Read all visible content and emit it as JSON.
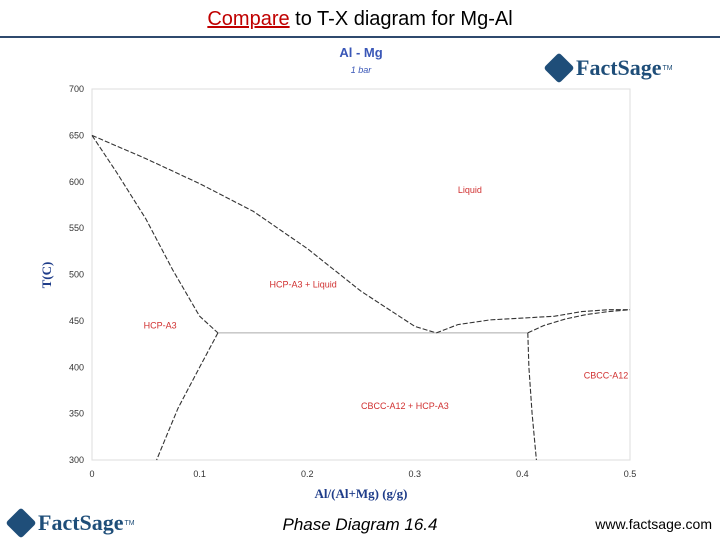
{
  "slide": {
    "title_keyword": "Compare",
    "title_rest": " to T-X diagram for Mg-Al",
    "footer_center": "Phase Diagram 16.4",
    "footer_right": "www.factsage.com",
    "logo_text": "FactSage",
    "logo_tm": "TM"
  },
  "colors": {
    "title_keyword": "#c00000",
    "chart_title": "#3a57b7",
    "curve": "#333333",
    "region_label": "#d03030",
    "axis_label": "#1f3d8a",
    "tick_label": "#333333"
  },
  "chart_data": {
    "type": "line",
    "title": "Al - Mg",
    "subtitle": "1 bar",
    "xlabel": "Al/(Al+Mg) (g/g)",
    "ylabel": "T(C)",
    "xlim": [
      0,
      0.5
    ],
    "ylim": [
      300,
      700
    ],
    "grid": false,
    "xticks": [
      "0",
      "0.1",
      "0.2",
      "0.3",
      "0.4",
      "0.5"
    ],
    "yticks": [
      "300",
      "350",
      "400",
      "450",
      "500",
      "550",
      "600",
      "650",
      "700"
    ],
    "series": [
      {
        "x": [
          0,
          0.023,
          0.05,
          0.075,
          0.1,
          0.117
        ],
        "y": [
          650,
          610,
          560,
          505,
          455,
          437
        ],
        "style": "dashed"
      },
      {
        "x": [
          0,
          0.05,
          0.1,
          0.15,
          0.2,
          0.25,
          0.3,
          0.32
        ],
        "y": [
          650,
          625,
          598,
          568,
          528,
          482,
          444,
          437
        ],
        "style": "dashed"
      },
      {
        "x": [
          0.117,
          0.32,
          0.405
        ],
        "y": [
          437,
          437,
          437
        ],
        "style": "solid"
      },
      {
        "x": [
          0.32,
          0.34,
          0.37,
          0.4,
          0.43,
          0.455,
          0.48,
          0.5
        ],
        "y": [
          437,
          446,
          451,
          453,
          455,
          460,
          462,
          462
        ],
        "style": "dashed"
      },
      {
        "x": [
          0.405,
          0.42,
          0.44,
          0.46,
          0.48,
          0.5
        ],
        "y": [
          437,
          445,
          452,
          457,
          460,
          462
        ],
        "style": "dashed"
      },
      {
        "x": [
          0.117,
          0.1,
          0.09,
          0.08,
          0.07,
          0.06
        ],
        "y": [
          437,
          400,
          378,
          356,
          328,
          300
        ],
        "style": "dashed"
      },
      {
        "x": [
          0.405,
          0.406,
          0.409,
          0.413
        ],
        "y": [
          437,
          400,
          350,
          300
        ],
        "style": "dashed"
      }
    ],
    "annotations": [
      {
        "text": "Liquid",
        "x": 0.34,
        "y": 588
      },
      {
        "text": "HCP-A3 + Liquid",
        "x": 0.165,
        "y": 486
      },
      {
        "text": "HCP-A3",
        "x": 0.048,
        "y": 442
      },
      {
        "text": "CBCC-A12 + HCP-A3",
        "x": 0.25,
        "y": 355
      },
      {
        "text": "CBCC-A12",
        "x": 0.457,
        "y": 388
      }
    ]
  }
}
